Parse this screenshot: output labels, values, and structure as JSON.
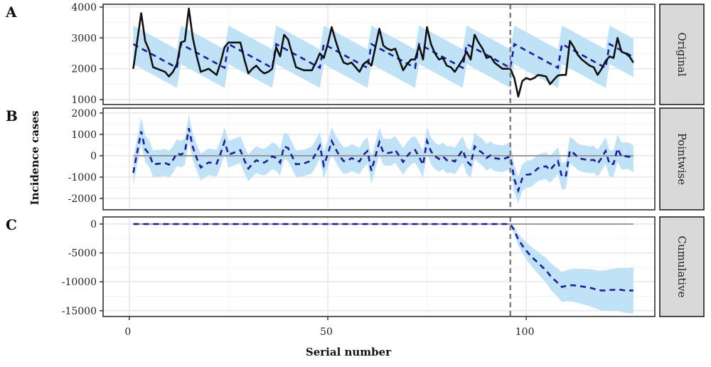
{
  "chart_data": {
    "type": "line",
    "xlabel": "Serial number",
    "ylabel": "Incidence cases",
    "xlim": [
      -6.6,
      132.4
    ],
    "xticks": [
      0,
      50,
      100
    ],
    "x_range": [
      1,
      127
    ],
    "intervention_x": 96,
    "grid": true,
    "colors": {
      "band": "#bfe2f7",
      "predicted": "#1c1ca0",
      "observed": "#111111",
      "reference": "#9a9a9a",
      "intervention": "#808080",
      "strip_bg": "#d9d9d9"
    },
    "panels": [
      {
        "letter": "A",
        "strip": "Original",
        "ylim": [
          840,
          4090
        ],
        "yticks": [
          1000,
          2000,
          3000,
          4000
        ],
        "observed": [
          2000,
          2900,
          3800,
          2900,
          2600,
          2050,
          2000,
          1950,
          1900,
          1750,
          1900,
          2150,
          2850,
          2900,
          3950,
          3000,
          2400,
          1900,
          1950,
          2000,
          1900,
          1800,
          2200,
          2700,
          2850,
          2850,
          2850,
          2850,
          2300,
          1850,
          2000,
          2100,
          1950,
          1850,
          1900,
          2000,
          2700,
          2400,
          3100,
          2950,
          2500,
          2050,
          2000,
          1950,
          1950,
          1950,
          2200,
          2500,
          2350,
          2800,
          3350,
          2900,
          2500,
          2200,
          2150,
          2200,
          2050,
          1900,
          2150,
          2250,
          2100,
          2700,
          3300,
          2750,
          2650,
          2600,
          2650,
          2300,
          1950,
          2150,
          2300,
          2300,
          2750,
          2300,
          3350,
          2800,
          2500,
          2300,
          2350,
          2100,
          2050,
          1900,
          2100,
          2300,
          2550,
          2300,
          3100,
          2850,
          2650,
          2350,
          2400,
          2200,
          2100,
          2000,
          2000,
          2000,
          1700,
          1100,
          1600,
          1700,
          1650,
          1700,
          1800,
          1780,
          1750,
          1500,
          1650,
          1780,
          1800,
          1800,
          2900,
          2700,
          2450,
          2300,
          2200,
          2100,
          2050,
          1800,
          2000,
          2250,
          2400,
          2350,
          3000,
          2550,
          2500,
          2400,
          2200
        ],
        "predicted_mean": [
          2800,
          2730,
          2660,
          2590,
          2520,
          2450,
          2380,
          2310,
          2240,
          2170,
          2100,
          2030,
          2800,
          2730,
          2660,
          2590,
          2520,
          2450,
          2380,
          2310,
          2240,
          2170,
          2100,
          2030,
          2800,
          2730,
          2660,
          2590,
          2520,
          2450,
          2380,
          2310,
          2240,
          2170,
          2100,
          2030,
          2800,
          2730,
          2660,
          2590,
          2520,
          2450,
          2380,
          2310,
          2240,
          2170,
          2100,
          2030,
          2800,
          2730,
          2660,
          2590,
          2520,
          2450,
          2380,
          2310,
          2240,
          2170,
          2100,
          2030,
          2800,
          2730,
          2660,
          2590,
          2520,
          2450,
          2380,
          2310,
          2240,
          2170,
          2100,
          2030,
          2800,
          2730,
          2660,
          2590,
          2520,
          2450,
          2380,
          2310,
          2240,
          2170,
          2100,
          2030,
          2800,
          2730,
          2660,
          2590,
          2520,
          2450,
          2380,
          2310,
          2240,
          2170,
          2100,
          2030,
          2800,
          2730,
          2660,
          2590,
          2520,
          2450,
          2380,
          2310,
          2240,
          2170,
          2100,
          2030,
          2800,
          2730,
          2660,
          2590,
          2520,
          2450,
          2380,
          2310,
          2240,
          2170,
          2100,
          2030,
          2800,
          2730,
          2660,
          2590,
          2520,
          2450,
          2380
        ],
        "predicted_upper": [
          3400,
          3330,
          3260,
          3190,
          3120,
          3050,
          2980,
          2910,
          2840,
          2770,
          2700,
          2630,
          3400,
          3330,
          3260,
          3190,
          3120,
          3050,
          2980,
          2910,
          2840,
          2770,
          2700,
          2630,
          3400,
          3330,
          3260,
          3190,
          3120,
          3050,
          2980,
          2910,
          2840,
          2770,
          2700,
          2630,
          3400,
          3330,
          3260,
          3190,
          3120,
          3050,
          2980,
          2910,
          2840,
          2770,
          2700,
          2630,
          3400,
          3330,
          3260,
          3190,
          3120,
          3050,
          2980,
          2910,
          2840,
          2770,
          2700,
          2630,
          3400,
          3330,
          3260,
          3190,
          3120,
          3050,
          2980,
          2910,
          2840,
          2770,
          2700,
          2630,
          3400,
          3330,
          3260,
          3190,
          3120,
          3050,
          2980,
          2910,
          2840,
          2770,
          2700,
          2630,
          3400,
          3330,
          3260,
          3190,
          3120,
          3050,
          2980,
          2910,
          2840,
          2770,
          2700,
          2630,
          3400,
          3330,
          3260,
          3190,
          3120,
          3050,
          2980,
          2910,
          2840,
          2770,
          2700,
          2630,
          3400,
          3330,
          3260,
          3190,
          3120,
          3050,
          2980,
          2910,
          2840,
          2770,
          2700,
          2630,
          3400,
          3330,
          3260,
          3190,
          3120,
          3050,
          2980
        ],
        "predicted_lower": [
          2150,
          2080,
          2010,
          1940,
          1870,
          1800,
          1730,
          1660,
          1590,
          1520,
          1450,
          1380,
          2150,
          2080,
          2010,
          1940,
          1870,
          1800,
          1730,
          1660,
          1590,
          1520,
          1450,
          1380,
          2150,
          2080,
          2010,
          1940,
          1870,
          1800,
          1730,
          1660,
          1590,
          1520,
          1450,
          1380,
          2150,
          2080,
          2010,
          1940,
          1870,
          1800,
          1730,
          1660,
          1590,
          1520,
          1450,
          1380,
          2150,
          2080,
          2010,
          1940,
          1870,
          1800,
          1730,
          1660,
          1590,
          1520,
          1450,
          1380,
          2150,
          2080,
          2010,
          1940,
          1870,
          1800,
          1730,
          1660,
          1590,
          1520,
          1450,
          1380,
          2150,
          2080,
          2010,
          1940,
          1870,
          1800,
          1730,
          1660,
          1590,
          1520,
          1450,
          1380,
          2150,
          2080,
          2010,
          1940,
          1870,
          1800,
          1730,
          1660,
          1590,
          1520,
          1450,
          1380,
          2150,
          2080,
          2010,
          1940,
          1870,
          1800,
          1730,
          1660,
          1590,
          1520,
          1450,
          1380,
          2150,
          2080,
          2010,
          1940,
          1870,
          1800,
          1730,
          1660,
          1590,
          1520,
          1450,
          1380,
          2150,
          2080,
          2010,
          1940,
          1870,
          1800,
          1730
        ]
      },
      {
        "letter": "B",
        "strip": "Pointwise",
        "ylim": [
          -2530,
          2230
        ],
        "yticks": [
          -2000,
          -1000,
          0,
          1000,
          2000
        ],
        "reference_line": 0
      },
      {
        "letter": "C",
        "strip": "Cumulative",
        "ylim": [
          -16000,
          1230
        ],
        "yticks": [
          -15000,
          -10000,
          -5000,
          0
        ],
        "reference_line": 0,
        "mean": [
          0,
          0,
          0,
          0,
          0,
          0,
          0,
          0,
          0,
          0,
          0,
          0,
          0,
          0,
          0,
          0,
          0,
          0,
          0,
          0,
          0,
          0,
          0,
          0,
          0,
          0,
          0,
          0,
          0,
          0,
          0,
          0,
          0,
          0,
          0,
          0,
          0,
          0,
          0,
          0,
          0,
          0,
          0,
          0,
          0,
          0,
          0,
          0,
          0,
          0,
          0,
          0,
          0,
          0,
          0,
          0,
          0,
          0,
          0,
          0,
          0,
          0,
          0,
          0,
          0,
          0,
          0,
          0,
          0,
          0,
          0,
          0,
          0,
          0,
          0,
          0,
          0,
          0,
          0,
          0,
          0,
          0,
          0,
          0,
          0,
          0,
          0,
          0,
          0,
          0,
          0,
          0,
          0,
          0,
          0,
          0,
          -1100,
          -2700,
          -3700,
          -4600,
          -5400,
          -6100,
          -6700,
          -7400,
          -8000,
          -8900,
          -9600,
          -10200,
          -10900,
          -10700,
          -10600,
          -10600,
          -10700,
          -10800,
          -10900,
          -11000,
          -11200,
          -11400,
          -11500,
          -11500,
          -11400,
          -11400,
          -11300,
          -11400,
          -11500,
          -11500,
          -11500
        ],
        "upper": [
          0,
          0,
          0,
          0,
          0,
          0,
          0,
          0,
          0,
          0,
          0,
          0,
          0,
          0,
          0,
          0,
          0,
          0,
          0,
          0,
          0,
          0,
          0,
          0,
          0,
          0,
          0,
          0,
          0,
          0,
          0,
          0,
          0,
          0,
          0,
          0,
          0,
          0,
          0,
          0,
          0,
          0,
          0,
          0,
          0,
          0,
          0,
          0,
          0,
          0,
          0,
          0,
          0,
          0,
          0,
          0,
          0,
          0,
          0,
          0,
          0,
          0,
          0,
          0,
          0,
          0,
          0,
          0,
          0,
          0,
          0,
          0,
          0,
          0,
          0,
          0,
          0,
          0,
          0,
          0,
          0,
          0,
          0,
          0,
          0,
          0,
          0,
          0,
          0,
          0,
          0,
          0,
          0,
          0,
          0,
          0,
          -380,
          -1680,
          -2460,
          -3160,
          -3790,
          -4340,
          -4800,
          -5370,
          -5840,
          -6630,
          -7220,
          -7710,
          -8310,
          -8010,
          -7820,
          -7730,
          -7740,
          -7750,
          -7770,
          -7790,
          -7910,
          -8030,
          -8050,
          -7980,
          -7810,
          -7740,
          -7570,
          -7600,
          -7630,
          -7570,
          -7500
        ],
        "lower": [
          0,
          0,
          0,
          0,
          0,
          0,
          0,
          0,
          0,
          0,
          0,
          0,
          0,
          0,
          0,
          0,
          0,
          0,
          0,
          0,
          0,
          0,
          0,
          0,
          0,
          0,
          0,
          0,
          0,
          0,
          0,
          0,
          0,
          0,
          0,
          0,
          0,
          0,
          0,
          0,
          0,
          0,
          0,
          0,
          0,
          0,
          0,
          0,
          0,
          0,
          0,
          0,
          0,
          0,
          0,
          0,
          0,
          0,
          0,
          0,
          0,
          0,
          0,
          0,
          0,
          0,
          0,
          0,
          0,
          0,
          0,
          0,
          0,
          0,
          0,
          0,
          0,
          0,
          0,
          0,
          0,
          0,
          0,
          0,
          0,
          0,
          0,
          0,
          0,
          0,
          0,
          0,
          0,
          0,
          0,
          0,
          -1820,
          -3720,
          -4940,
          -6040,
          -7010,
          -7860,
          -8600,
          -9430,
          -10160,
          -11170,
          -11980,
          -12690,
          -13490,
          -13390,
          -13380,
          -13470,
          -13660,
          -13850,
          -14030,
          -14210,
          -14490,
          -14770,
          -14950,
          -15020,
          -14990,
          -15060,
          -15030,
          -15200,
          -15370,
          -15430,
          -15500
        ]
      }
    ]
  }
}
